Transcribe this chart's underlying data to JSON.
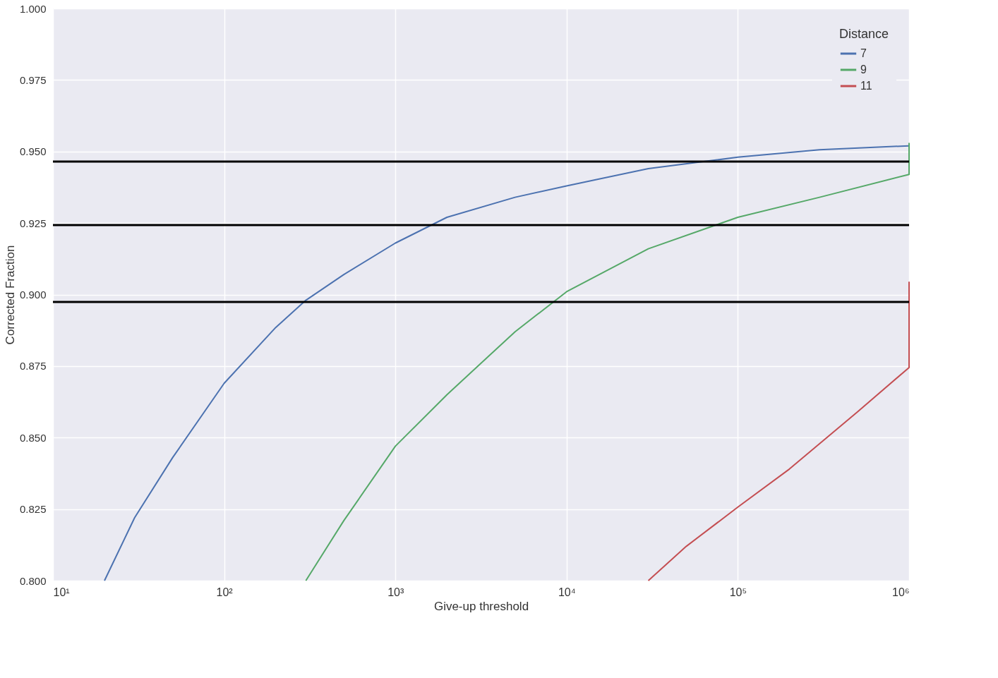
{
  "chart_data": {
    "type": "line",
    "xlabel": "Give-up threshold",
    "ylabel": "Corrected Fraction",
    "legend_title": "Distance",
    "legend": "top right",
    "log": "x",
    "grid": true,
    "line_style": "solid",
    "marker": "none",
    "xlim": [
      10,
      1000000
    ],
    "ylim": [
      0.8,
      1.0
    ],
    "xticks": [
      {
        "value": 10,
        "label": "10¹"
      },
      {
        "value": 100,
        "label": "10²"
      },
      {
        "value": 1000,
        "label": "10³"
      },
      {
        "value": 10000,
        "label": "10⁴"
      },
      {
        "value": 100000,
        "label": "10⁵"
      },
      {
        "value": 1000000,
        "label": "10⁶"
      }
    ],
    "yticks": [
      {
        "value": 0.8,
        "label": "0.800"
      },
      {
        "value": 0.825,
        "label": "0.825"
      },
      {
        "value": 0.85,
        "label": "0.850"
      },
      {
        "value": 0.875,
        "label": "0.875"
      },
      {
        "value": 0.9,
        "label": "0.900"
      },
      {
        "value": 0.925,
        "label": "0.925"
      },
      {
        "value": 0.95,
        "label": "0.950"
      },
      {
        "value": 0.975,
        "label": "0.975"
      },
      {
        "value": 1.0,
        "label": "1.000"
      }
    ],
    "series": [
      {
        "name": "7",
        "color": "#4c72b0",
        "x": [
          20,
          30,
          50,
          100,
          200,
          300,
          500,
          1000,
          2000,
          5000,
          10000,
          30000,
          100000,
          300000,
          1000000
        ],
        "values": [
          0.8,
          0.822,
          0.843,
          0.869,
          0.8885,
          0.898,
          0.907,
          0.918,
          0.927,
          0.934,
          0.938,
          0.944,
          0.948,
          0.9506,
          0.952
        ]
      },
      {
        "name": "9",
        "color": "#55a868",
        "x": [
          300,
          500,
          1000,
          2000,
          5000,
          10000,
          30000,
          100000,
          300000,
          1000000,
          1000000
        ],
        "values": [
          0.8,
          0.821,
          0.847,
          0.865,
          0.887,
          0.901,
          0.916,
          0.927,
          0.934,
          0.942,
          0.953
        ]
      },
      {
        "name": "11",
        "color": "#c44e52",
        "x": [
          30000,
          50000,
          100000,
          200000,
          500000,
          1000000,
          1000000
        ],
        "values": [
          0.8,
          0.812,
          0.8257,
          0.839,
          0.859,
          0.8745,
          0.9045
        ]
      }
    ],
    "ref_lines": [
      {
        "axis": "y",
        "value": 0.9465,
        "color": "#000000"
      },
      {
        "axis": "y",
        "value": 0.9243,
        "color": "#000000"
      },
      {
        "axis": "y",
        "value": 0.8974,
        "color": "#000000"
      }
    ]
  }
}
